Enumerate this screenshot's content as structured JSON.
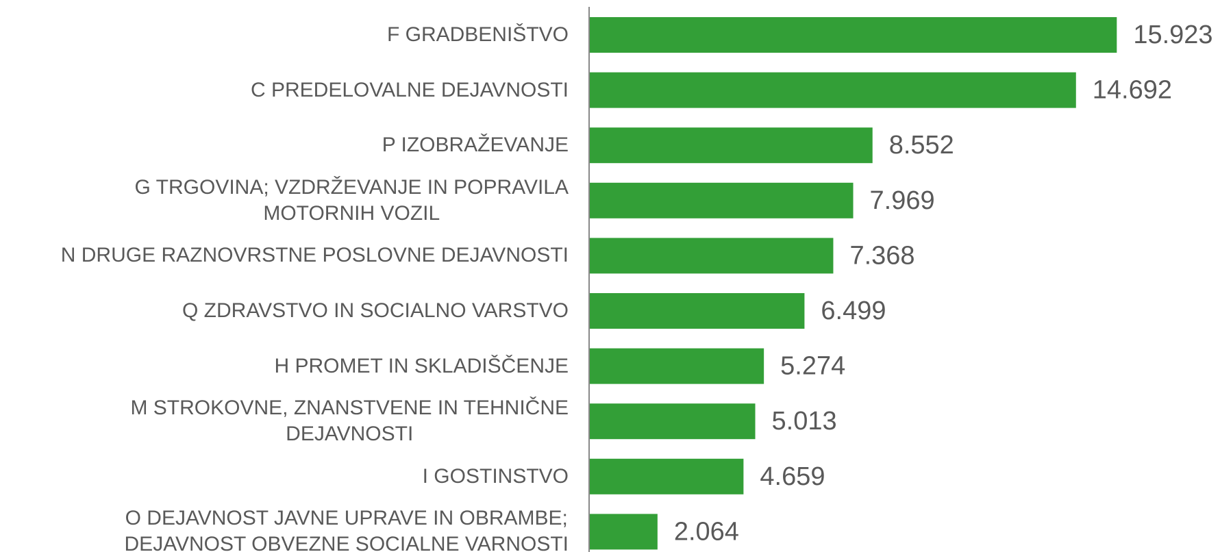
{
  "chart_data": {
    "type": "bar",
    "orientation": "horizontal",
    "categories": [
      "F GRADBENIŠTVO",
      "C PREDELOVALNE DEJAVNOSTI",
      "P IZOBRAŽEVANJE",
      "G TRGOVINA; VZDRŽEVANJE IN POPRAVILA\nMOTORNIH VOZIL",
      "N DRUGE RAZNOVRSTNE POSLOVNE DEJAVNOSTI",
      "Q ZDRAVSTVO IN SOCIALNO VARSTVO",
      "H PROMET IN SKLADIŠČENJE",
      "M STROKOVNE, ZNANSTVENE IN TEHNIČNE\nDEJAVNOSTI",
      "I GOSTINSTVO",
      "O DEJAVNOST JAVNE UPRAVE IN OBRAMBE;\nDEJAVNOST OBVEZNE SOCIALNE VARNOSTI"
    ],
    "values": [
      15923,
      14692,
      8552,
      7969,
      7368,
      6499,
      5274,
      5013,
      4659,
      2064
    ],
    "value_labels": [
      "15.923",
      "14.692",
      "8.552",
      "7.969",
      "7.368",
      "6.499",
      "5.274",
      "5.013",
      "4.659",
      "2.064"
    ],
    "color": "#339f37",
    "xlim": [
      0,
      18500
    ]
  }
}
